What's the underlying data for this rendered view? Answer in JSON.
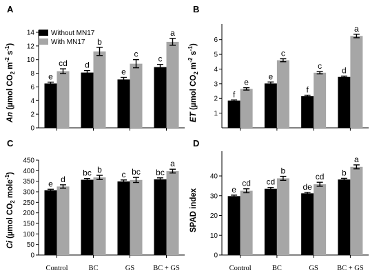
{
  "legend": {
    "without": "Without MN17",
    "with": "With MN17"
  },
  "colors": {
    "without": "#000000",
    "with": "#a6a6a6"
  },
  "categories": [
    "Control",
    "BC",
    "GS",
    "BC + GS"
  ],
  "chart_data": [
    {
      "type": "bar",
      "panel": "A",
      "ylabel": "An (µmol CO2 m-2 s-1)",
      "ylim": [
        0,
        14
      ],
      "yticks": [
        0,
        2,
        4,
        6,
        8,
        10,
        12,
        14
      ],
      "categories": [
        "Control",
        "BC",
        "GS",
        "BC + GS"
      ],
      "series": [
        {
          "name": "Without MN17",
          "values": [
            6.5,
            8.1,
            7.1,
            8.9
          ],
          "errors": [
            0.2,
            0.3,
            0.3,
            0.4
          ],
          "letters": [
            "e",
            "d",
            "e",
            "c"
          ]
        },
        {
          "name": "With MN17",
          "values": [
            8.3,
            11.2,
            9.4,
            12.6
          ],
          "errors": [
            0.35,
            0.6,
            0.6,
            0.5
          ],
          "letters": [
            "cd",
            "b",
            "c",
            "a"
          ]
        }
      ]
    },
    {
      "type": "bar",
      "panel": "B",
      "ylabel": "ET (µmol CO2 m-2 s-1)",
      "ylim": [
        0,
        6.5
      ],
      "yticks": [
        1,
        2,
        3,
        4,
        5,
        6
      ],
      "categories": [
        "Control",
        "BC",
        "GS",
        "BC + GS"
      ],
      "series": [
        {
          "name": "Without MN17",
          "values": [
            1.85,
            3.02,
            2.15,
            3.47
          ],
          "errors": [
            0.05,
            0.1,
            0.07,
            0.05
          ],
          "letters": [
            "f",
            "e",
            "f",
            "d"
          ]
        },
        {
          "name": "With MN17",
          "values": [
            2.65,
            4.6,
            3.75,
            6.25
          ],
          "errors": [
            0.08,
            0.1,
            0.08,
            0.12
          ],
          "letters": [
            "e",
            "c",
            "c",
            "a"
          ]
        }
      ]
    },
    {
      "type": "bar",
      "panel": "C",
      "ylabel": "Ci (µmol CO2 mole-1)",
      "ylim": [
        0,
        450
      ],
      "yticks": [
        0,
        50,
        100,
        150,
        200,
        250,
        300,
        350,
        400,
        450
      ],
      "categories": [
        "Control",
        "BC",
        "GS",
        "BC + GS"
      ],
      "series": [
        {
          "name": "Without MN17",
          "values": [
            307,
            357,
            349,
            359
          ],
          "errors": [
            5,
            6,
            7,
            7
          ],
          "letters": [
            "e",
            "bc",
            "c",
            "bc"
          ]
        },
        {
          "name": "With MN17",
          "values": [
            325,
            368,
            356,
            398
          ],
          "errors": [
            8,
            10,
            12,
            9
          ],
          "letters": [
            "d",
            "b",
            "bc",
            "a"
          ]
        }
      ]
    },
    {
      "type": "bar",
      "panel": "D",
      "ylabel": "SPAD index",
      "ylim": [
        0,
        48
      ],
      "yticks": [
        0,
        10,
        20,
        30,
        40
      ],
      "categories": [
        "Control",
        "BC",
        "GS",
        "BC + GS"
      ],
      "series": [
        {
          "name": "Without MN17",
          "values": [
            29.8,
            33.5,
            31.2,
            38.2
          ],
          "errors": [
            0.5,
            0.7,
            0.5,
            0.6
          ],
          "letters": [
            "e",
            "cd",
            "de",
            "b"
          ]
        },
        {
          "name": "With MN17",
          "values": [
            32.5,
            38.8,
            35.8,
            44.6
          ],
          "errors": [
            1.0,
            1.0,
            1.0,
            1.0
          ],
          "letters": [
            "cd",
            "b",
            "cd",
            "a"
          ]
        }
      ]
    }
  ]
}
